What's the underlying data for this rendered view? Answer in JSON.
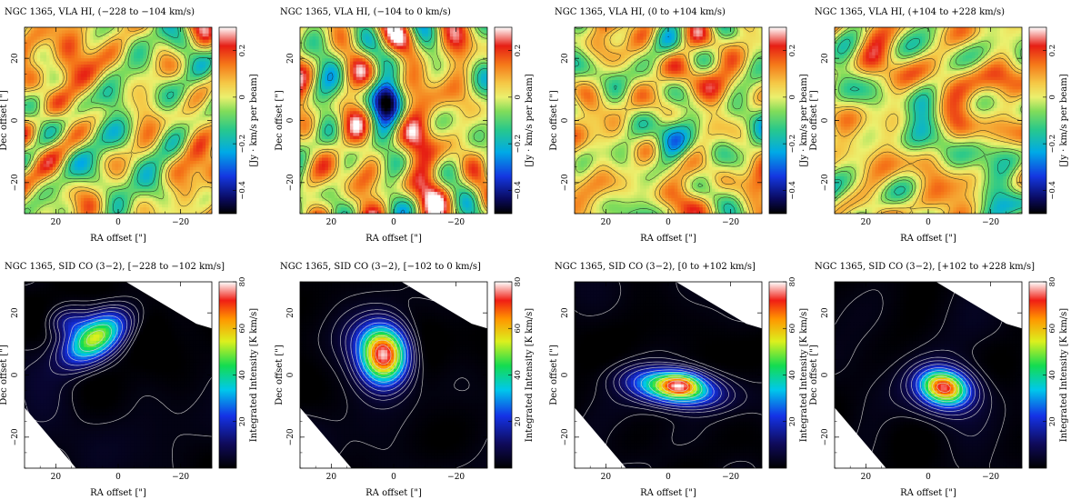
{
  "chart_data": [
    {
      "type": "heatmap",
      "title": "NGC 1365, VLA HI, (−228 to −104 km/s)",
      "xlabel": "RA offset  [\"]",
      "ylabel": "Dec offset  [\"]",
      "colorbar_label": "[Jy · km/s per beam]",
      "xlim": [
        30,
        -30
      ],
      "ylim": [
        -30,
        30
      ],
      "xticks": [
        "20",
        "0",
        "−20"
      ],
      "xtick_values": [
        20,
        0,
        -20
      ],
      "yticks": [
        "−20",
        "0",
        "20"
      ],
      "ytick_values": [
        -20,
        0,
        20
      ],
      "cbar_range": [
        -0.5,
        0.3
      ],
      "cbar_ticks": [
        "−0.4",
        "−0.2",
        "0",
        "0.2"
      ],
      "cbar_tick_values": [
        -0.4,
        -0.2,
        0,
        0.2
      ],
      "colormap": "hi",
      "sources": [
        {
          "x": 3,
          "y": 7,
          "sx": 3.5,
          "sy": 3.5,
          "amp": -0.17
        },
        {
          "x": 17,
          "y": 16,
          "sx": 3,
          "sy": 3,
          "amp": 0.1
        }
      ]
    },
    {
      "type": "heatmap",
      "title": "NGC 1365, VLA HI, (−104 to 0 km/s)",
      "xlabel": "RA offset  [\"]",
      "ylabel": "Dec offset  [\"]",
      "colorbar_label": "[Jy · km/s per beam]",
      "xlim": [
        30,
        -30
      ],
      "ylim": [
        -30,
        30
      ],
      "xticks": [
        "20",
        "0",
        "−20"
      ],
      "xtick_values": [
        20,
        0,
        -20
      ],
      "yticks": [
        "−20",
        "0",
        "20"
      ],
      "ytick_values": [
        -20,
        0,
        20
      ],
      "cbar_range": [
        -0.5,
        0.3
      ],
      "cbar_ticks": [
        "−0.4",
        "−0.2",
        "0",
        "0.2"
      ],
      "cbar_tick_values": [
        -0.4,
        -0.2,
        0,
        0.2
      ],
      "colormap": "hi",
      "sources": [
        {
          "x": 2,
          "y": 7,
          "sx": 3.5,
          "sy": 4.5,
          "amp": -0.47
        }
      ]
    },
    {
      "type": "heatmap",
      "title": "NGC 1365, VLA HI, (0 to +104 km/s)",
      "xlabel": "RA offset  [\"]",
      "ylabel": "Dec offset  [\"]",
      "colorbar_label": "[Jy · km/s per beam]",
      "xlim": [
        30,
        -30
      ],
      "ylim": [
        -30,
        30
      ],
      "xticks": [
        "20",
        "0",
        "−20"
      ],
      "xtick_values": [
        20,
        0,
        -20
      ],
      "yticks": [
        "−20",
        "0",
        "20"
      ],
      "ytick_values": [
        -20,
        0,
        20
      ],
      "cbar_range": [
        -0.5,
        0.3
      ],
      "cbar_ticks": [
        "−0.4",
        "−0.2",
        "0",
        "0.2"
      ],
      "cbar_tick_values": [
        -0.4,
        -0.2,
        0,
        0.2
      ],
      "colormap": "hi",
      "sources": [
        {
          "x": 0,
          "y": -4,
          "sx": 4,
          "sy": 5,
          "amp": -0.12
        },
        {
          "x": 6,
          "y": 10,
          "sx": 3,
          "sy": 4,
          "amp": -0.07
        }
      ]
    },
    {
      "type": "heatmap",
      "title": "NGC 1365, VLA HI, (+104 to +228 km/s)",
      "xlabel": "RA offset  [\"]",
      "ylabel": "Dec offset  [\"]",
      "colorbar_label": "[Jy · km/s per beam]",
      "xlim": [
        30,
        -30
      ],
      "ylim": [
        -30,
        30
      ],
      "xticks": [
        "20",
        "0",
        "−20"
      ],
      "xtick_values": [
        20,
        0,
        -20
      ],
      "yticks": [
        "−20",
        "0",
        "20"
      ],
      "ytick_values": [
        -20,
        0,
        20
      ],
      "cbar_range": [
        -0.5,
        0.3
      ],
      "cbar_ticks": [
        "−0.4",
        "−0.2",
        "0",
        "0.2"
      ],
      "cbar_tick_values": [
        -0.4,
        -0.2,
        0,
        0.2
      ],
      "colormap": "hi",
      "sources": [
        {
          "x": -5,
          "y": -6,
          "sx": 3.5,
          "sy": 4.5,
          "amp": -0.14
        },
        {
          "x": 2,
          "y": 4,
          "sx": 3.5,
          "sy": 5,
          "amp": -0.08
        }
      ]
    },
    {
      "type": "heatmap",
      "title": "NGC 1365, SID CO (3−2), [−228 to −102 km/s]",
      "xlabel": "RA offset  [\"]",
      "ylabel": "Dec offset  [\"]",
      "colorbar_label": "Integrated Intensity [K km/s]",
      "xlim": [
        30,
        -30
      ],
      "ylim": [
        -30,
        30
      ],
      "xticks": [
        "20",
        "0",
        "−20"
      ],
      "xtick_values": [
        20,
        0,
        -20
      ],
      "yticks": [
        "−20",
        "0",
        "20"
      ],
      "ytick_values": [
        -20,
        0,
        20
      ],
      "cbar_range": [
        0,
        80
      ],
      "cbar_ticks": [
        "20",
        "40",
        "60",
        "80"
      ],
      "cbar_tick_values": [
        20,
        40,
        60,
        80
      ],
      "colormap": "co",
      "sources": [
        {
          "x": 7,
          "y": 12,
          "sx": 7.5,
          "sy": 4,
          "angle": -35,
          "amp": 52
        },
        {
          "x": 16,
          "y": 17,
          "sx": 4,
          "sy": 3,
          "amp": 12
        }
      ]
    },
    {
      "type": "heatmap",
      "title": "NGC 1365, SID CO (3−2), [−102 to 0 km/s]",
      "xlabel": "RA offset  [\"]",
      "ylabel": "Dec offset  [\"]",
      "colorbar_label": "Integrated Intensity [K km/s]",
      "xlim": [
        30,
        -30
      ],
      "ylim": [
        -30,
        30
      ],
      "xticks": [
        "20",
        "0",
        "−20"
      ],
      "xtick_values": [
        20,
        0,
        -20
      ],
      "yticks": [
        "−20",
        "0",
        "20"
      ],
      "ytick_values": [
        -20,
        0,
        20
      ],
      "cbar_range": [
        0,
        80
      ],
      "cbar_ticks": [
        "20",
        "40",
        "60",
        "80"
      ],
      "cbar_tick_values": [
        20,
        40,
        60,
        80
      ],
      "colormap": "co",
      "sources": [
        {
          "x": 3,
          "y": 6,
          "sx": 5,
          "sy": 6,
          "amp": 75
        },
        {
          "x": 7,
          "y": 12,
          "sx": 6,
          "sy": 5,
          "amp": 12
        }
      ]
    },
    {
      "type": "heatmap",
      "title": "NGC 1365, SID CO (3−2), [0 to +102 km/s]",
      "xlabel": "RA offset  [\"]",
      "ylabel": "Dec offset  [\"]",
      "colorbar_label": "Integrated Intensity [K km/s]",
      "xlim": [
        30,
        -30
      ],
      "ylim": [
        -30,
        30
      ],
      "xticks": [
        "20",
        "0",
        "−20"
      ],
      "xtick_values": [
        20,
        0,
        -20
      ],
      "yticks": [
        "−20",
        "0",
        "20"
      ],
      "ytick_values": [
        -20,
        0,
        20
      ],
      "cbar_range": [
        0,
        80
      ],
      "cbar_ticks": [
        "20",
        "40",
        "60",
        "80"
      ],
      "cbar_tick_values": [
        20,
        40,
        60,
        80
      ],
      "colormap": "co",
      "sources": [
        {
          "x": -2,
          "y": -4,
          "sx": 9,
          "sy": 3.5,
          "angle": 8,
          "amp": 55
        },
        {
          "x": -4,
          "y": -3,
          "sx": 4,
          "sy": 2.5,
          "amp": 28
        }
      ]
    },
    {
      "type": "heatmap",
      "title": "NGC 1365, SID CO (3−2), [+102 to +228 km/s]",
      "xlabel": "RA offset  [\"]",
      "ylabel": "Dec offset  [\"]",
      "colorbar_label": "Integrated Intensity [K km/s]",
      "xlim": [
        30,
        -30
      ],
      "ylim": [
        -30,
        30
      ],
      "xticks": [
        "20",
        "0",
        "−20"
      ],
      "xtick_values": [
        20,
        0,
        -20
      ],
      "yticks": [
        "−20",
        "0",
        "20"
      ],
      "ytick_values": [
        -20,
        0,
        20
      ],
      "cbar_range": [
        0,
        80
      ],
      "cbar_ticks": [
        "20",
        "40",
        "60",
        "80"
      ],
      "cbar_tick_values": [
        20,
        40,
        60,
        80
      ],
      "colormap": "co",
      "sources": [
        {
          "x": -5,
          "y": -4,
          "sx": 5,
          "sy": 3.5,
          "angle": 15,
          "amp": 62
        },
        {
          "x": -5,
          "y": -5,
          "sx": 9,
          "sy": 6,
          "amp": 12
        }
      ]
    }
  ]
}
